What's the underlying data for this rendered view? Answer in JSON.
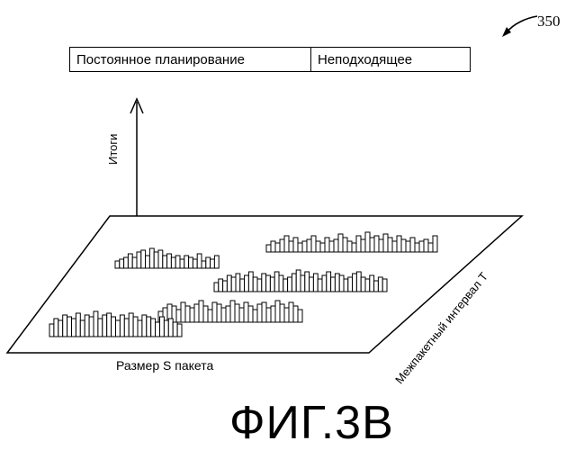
{
  "reference_number": "350",
  "header": {
    "cell_1": "Постоянное планирование",
    "cell_2": "Неподходящее"
  },
  "axes": {
    "y_label": "Итоги",
    "x_label": "Размер S пакета",
    "depth_label": "Межпакетный интервал T"
  },
  "caption": "ФИГ.3B"
}
